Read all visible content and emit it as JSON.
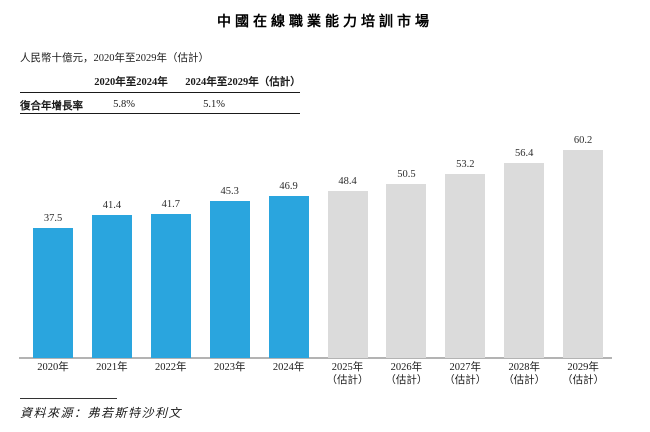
{
  "title": "中國在線職業能力培訓市場",
  "subtitle": "人民幣十億元，2020年至2029年（估計）",
  "cagr_table": {
    "columns": [
      "2020年至2024年",
      "2024年至2029年（估計）"
    ],
    "row_label": "復合年增長率",
    "values": [
      "5.8%",
      "5.1%"
    ]
  },
  "source": "資料來源：弗若斯特沙利文",
  "colors": {
    "actual": "#2aa5de",
    "estimate": "#dbdbdb",
    "axis": "#b3b3b3"
  },
  "chart_data": {
    "type": "bar",
    "title": "中國在線職業能力培訓市場",
    "unit_note": "人民幣十億元",
    "xlabel": "",
    "ylabel": "",
    "ylim": [
      0,
      62
    ],
    "grid": false,
    "legend": "none",
    "value_labels": true,
    "categories": [
      "2020年",
      "2021年",
      "2022年",
      "2023年",
      "2024年",
      "2025年（估計）",
      "2026年（估計）",
      "2027年（估計）",
      "2028年（估計）",
      "2029年（估計）"
    ],
    "values": [
      37.5,
      41.4,
      41.7,
      45.3,
      46.9,
      48.4,
      50.5,
      53.2,
      56.4,
      60.2
    ],
    "cagr_2020_2024": "5.8%",
    "cagr_2024_2029": "5.1%",
    "bars": [
      {
        "label": "2020年",
        "sublabel": "",
        "value": 37.5,
        "estimate": false
      },
      {
        "label": "2021年",
        "sublabel": "",
        "value": 41.4,
        "estimate": false
      },
      {
        "label": "2022年",
        "sublabel": "",
        "value": 41.7,
        "estimate": false
      },
      {
        "label": "2023年",
        "sublabel": "",
        "value": 45.3,
        "estimate": false
      },
      {
        "label": "2024年",
        "sublabel": "",
        "value": 46.9,
        "estimate": false
      },
      {
        "label": "2025年",
        "sublabel": "（估計）",
        "value": 48.4,
        "estimate": true
      },
      {
        "label": "2026年",
        "sublabel": "（估計）",
        "value": 50.5,
        "estimate": true
      },
      {
        "label": "2027年",
        "sublabel": "（估計）",
        "value": 53.2,
        "estimate": true
      },
      {
        "label": "2028年",
        "sublabel": "（估計）",
        "value": 56.4,
        "estimate": true
      },
      {
        "label": "2029年",
        "sublabel": "（估計）",
        "value": 60.2,
        "estimate": true
      }
    ]
  }
}
